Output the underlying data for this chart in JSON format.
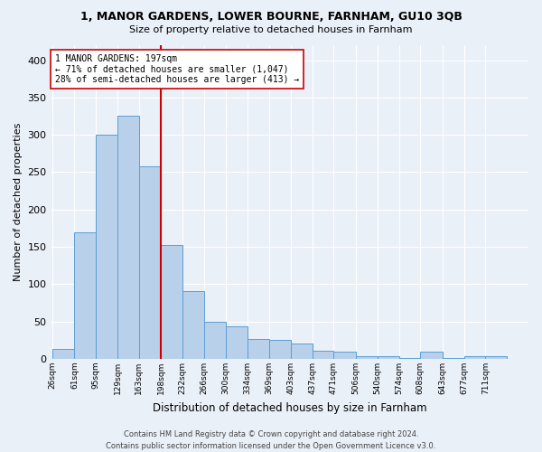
{
  "title": "1, MANOR GARDENS, LOWER BOURNE, FARNHAM, GU10 3QB",
  "subtitle": "Size of property relative to detached houses in Farnham",
  "xlabel": "Distribution of detached houses by size in Farnham",
  "ylabel": "Number of detached properties",
  "bin_labels": [
    "26sqm",
    "61sqm",
    "95sqm",
    "129sqm",
    "163sqm",
    "198sqm",
    "232sqm",
    "266sqm",
    "300sqm",
    "334sqm",
    "369sqm",
    "403sqm",
    "437sqm",
    "471sqm",
    "506sqm",
    "540sqm",
    "574sqm",
    "608sqm",
    "643sqm",
    "677sqm",
    "711sqm"
  ],
  "bin_edges": [
    26,
    61,
    95,
    129,
    163,
    198,
    232,
    266,
    300,
    334,
    369,
    403,
    437,
    471,
    506,
    540,
    574,
    608,
    643,
    677,
    711,
    745
  ],
  "bar_heights": [
    13,
    170,
    300,
    325,
    258,
    152,
    91,
    50,
    44,
    27,
    25,
    21,
    11,
    10,
    4,
    4,
    1,
    10,
    1,
    4,
    4
  ],
  "bar_color": "#b8d0ea",
  "bar_edge_color": "#5a9fd4",
  "vline_color": "#cc0000",
  "vline_x": 198,
  "annotation_line1": "1 MANOR GARDENS: 197sqm",
  "annotation_line2": "← 71% of detached houses are smaller (1,047)",
  "annotation_line3": "28% of semi-detached houses are larger (413) →",
  "annotation_box_color": "white",
  "annotation_box_edge_color": "#cc0000",
  "ylim": [
    0,
    420
  ],
  "footer_line1": "Contains HM Land Registry data © Crown copyright and database right 2024.",
  "footer_line2": "Contains public sector information licensed under the Open Government Licence v3.0.",
  "bg_color": "#eaf0f8",
  "grid_color": "white"
}
